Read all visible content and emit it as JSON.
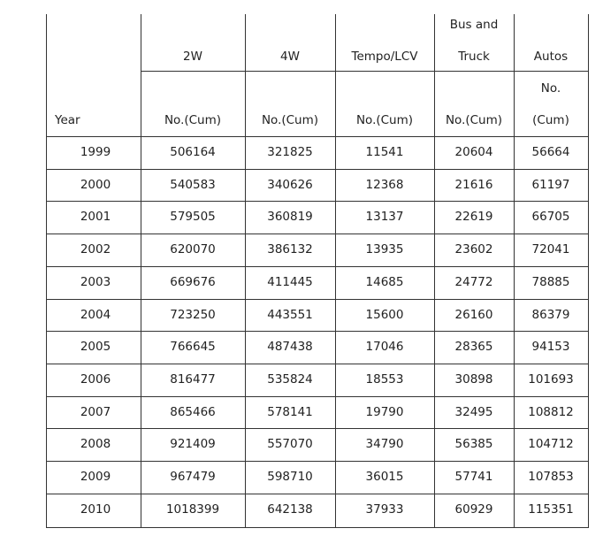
{
  "headers": {
    "year": "Year",
    "col_2w": "2W",
    "col_4w": "4W",
    "col_tempo": "Tempo/LCV",
    "col_bus_line1": "Bus and",
    "col_bus_line2": "Truck",
    "col_autos": "Autos",
    "unit": "No.(Cum)",
    "autos_unit_line1": "No.",
    "autos_unit_line2": "(Cum)"
  },
  "rows": [
    [
      "1999",
      "506164",
      "321825",
      "11541",
      "20604",
      "56664"
    ],
    [
      "2000",
      "540583",
      "340626",
      "12368",
      "21616",
      "61197"
    ],
    [
      "2001",
      "579505",
      "360819",
      "13137",
      "22619",
      "66705"
    ],
    [
      "2002",
      "620070",
      "386132",
      "13935",
      "23602",
      "72041"
    ],
    [
      "2003",
      "669676",
      "411445",
      "14685",
      "24772",
      "78885"
    ],
    [
      "2004",
      "723250",
      "443551",
      "15600",
      "26160",
      "86379"
    ],
    [
      "2005",
      "766645",
      "487438",
      "17046",
      "28365",
      "94153"
    ],
    [
      "2006",
      "816477",
      "535824",
      "18553",
      "30898",
      "101693"
    ],
    [
      "2007",
      "865466",
      "578141",
      "19790",
      "32495",
      "108812"
    ],
    [
      "2008",
      "921409",
      "557070",
      "34790",
      "56385",
      "104712"
    ],
    [
      "2009",
      "967479",
      "598710",
      "36015",
      "57741",
      "107853"
    ],
    [
      "2010",
      "1018399",
      "642138",
      "37933",
      "60929",
      "115351"
    ]
  ]
}
